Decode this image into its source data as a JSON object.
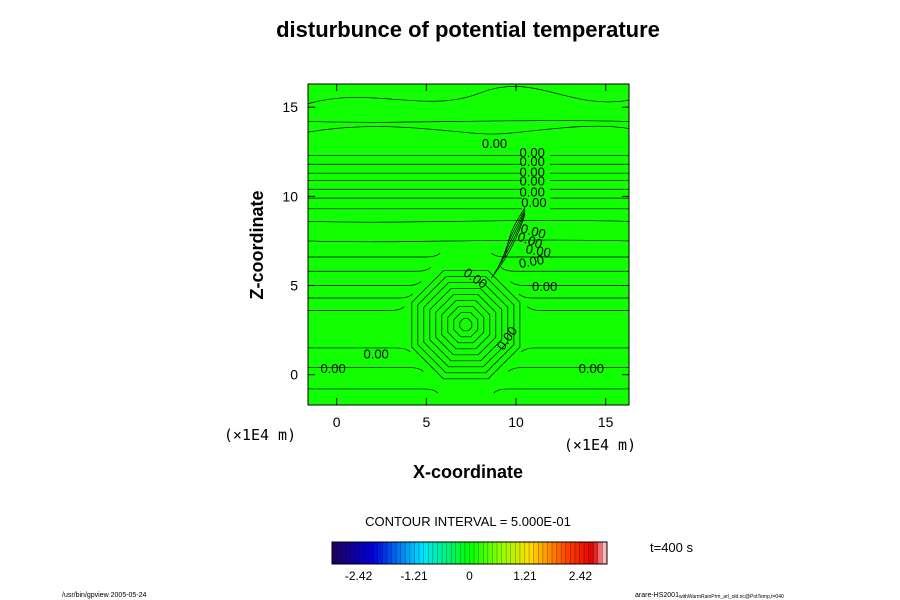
{
  "chart_data": {
    "type": "contour",
    "title": "disturbunce of potential temperature",
    "xlabel": "X-coordinate",
    "ylabel": "Z-coordinate",
    "x_unit_label": "(×1E4 m)",
    "y_unit_label": "(×1E4 m)",
    "xlim": [
      -1.6,
      16.3
    ],
    "ylim": [
      -1.7,
      16.3
    ],
    "x_ticks": [
      0,
      5,
      10,
      15
    ],
    "y_ticks": [
      0,
      5,
      10,
      15
    ],
    "x_tick_labels": [
      "0",
      "5",
      "10",
      "15"
    ],
    "y_tick_labels": [
      "0",
      "5",
      "10",
      "15"
    ],
    "fill_color": "#11ff00",
    "contour_interval_label": "CONTOUR INTERVAL = 5.000E-01",
    "time_label": "t=400 s",
    "contour_labels": [
      {
        "text": "0.00",
        "x": 8.8,
        "y": 12.7,
        "angle": 0
      },
      {
        "text": "0.00",
        "x": 10.9,
        "y": 12.2,
        "angle": 0
      },
      {
        "text": "0.00",
        "x": 10.9,
        "y": 11.7,
        "angle": 0
      },
      {
        "text": "0.00",
        "x": 10.9,
        "y": 11.1,
        "angle": 0
      },
      {
        "text": "0.00",
        "x": 10.9,
        "y": 10.6,
        "angle": 0
      },
      {
        "text": "0.00",
        "x": 10.9,
        "y": 10.0,
        "angle": 0
      },
      {
        "text": "0.00",
        "x": 11.0,
        "y": 9.4,
        "angle": 0
      },
      {
        "text": "0.00",
        "x": 10.9,
        "y": 7.8,
        "angle": 15
      },
      {
        "text": "0.00",
        "x": 10.7,
        "y": 7.3,
        "angle": 20
      },
      {
        "text": "0.00",
        "x": 11.2,
        "y": 6.7,
        "angle": 10
      },
      {
        "text": "0.00",
        "x": 10.9,
        "y": 6.1,
        "angle": -10
      },
      {
        "text": "0.00",
        "x": 7.6,
        "y": 5.2,
        "angle": 35
      },
      {
        "text": "0.00",
        "x": 11.6,
        "y": 4.7,
        "angle": 0
      },
      {
        "text": "0.00",
        "x": 9.7,
        "y": 1.9,
        "angle": -55
      },
      {
        "text": "0.00",
        "x": 2.2,
        "y": 0.9,
        "angle": 0
      },
      {
        "text": "0.00",
        "x": -0.2,
        "y": 0.1,
        "angle": 0
      },
      {
        "text": "0.00",
        "x": 14.2,
        "y": 0.1,
        "angle": 0
      }
    ]
  },
  "colorbar": {
    "tick_labels": [
      "-2.42",
      "-1.21",
      "0",
      "1.21",
      "2.42"
    ],
    "tick_values": [
      -2.42,
      -1.21,
      0,
      1.21,
      2.42
    ],
    "range": [
      -3.0,
      3.0
    ]
  },
  "footer": {
    "left": "/usr/bin/gpview 2005-05-24",
    "right_main": "arare-HS2001",
    "right_sub": "withWarmRainPrm_arl_old.nc@PotTemp,t=040"
  }
}
